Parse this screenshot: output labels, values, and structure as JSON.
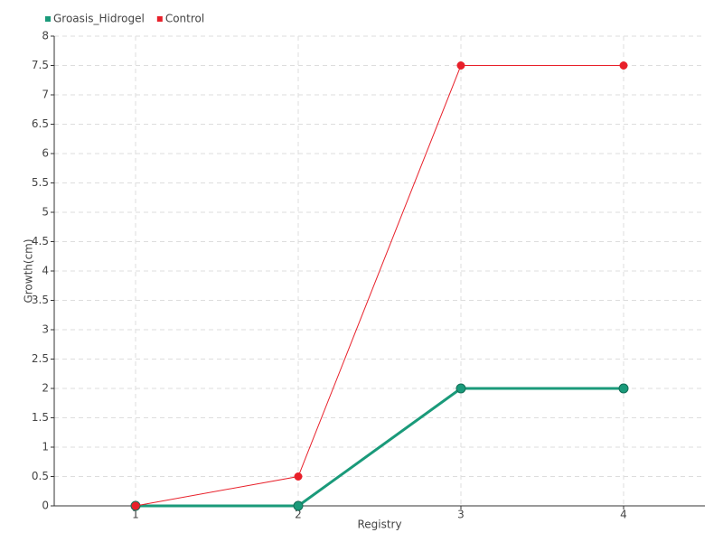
{
  "chart_data": {
    "type": "line",
    "x_label": "Registry",
    "y_label": "Growth(cm)",
    "x": [
      1,
      2,
      3,
      4
    ],
    "xlim": [
      0.5,
      4.5
    ],
    "xticks": [
      1,
      2,
      3,
      4
    ],
    "ylim": [
      0,
      8
    ],
    "yticks": [
      0,
      0.5,
      1,
      1.5,
      2,
      2.5,
      3,
      3.5,
      4,
      4.5,
      5,
      5.5,
      6,
      6.5,
      7,
      7.5,
      8
    ],
    "grid": true,
    "legend": "top-left",
    "series": [
      {
        "name": "Groasis_Hidrogel",
        "color": "#1a9a7a",
        "values": [
          0,
          0,
          2,
          2
        ]
      },
      {
        "name": "Control",
        "color": "#e8202a",
        "values": [
          0,
          0.5,
          7.5,
          7.5
        ]
      }
    ]
  }
}
